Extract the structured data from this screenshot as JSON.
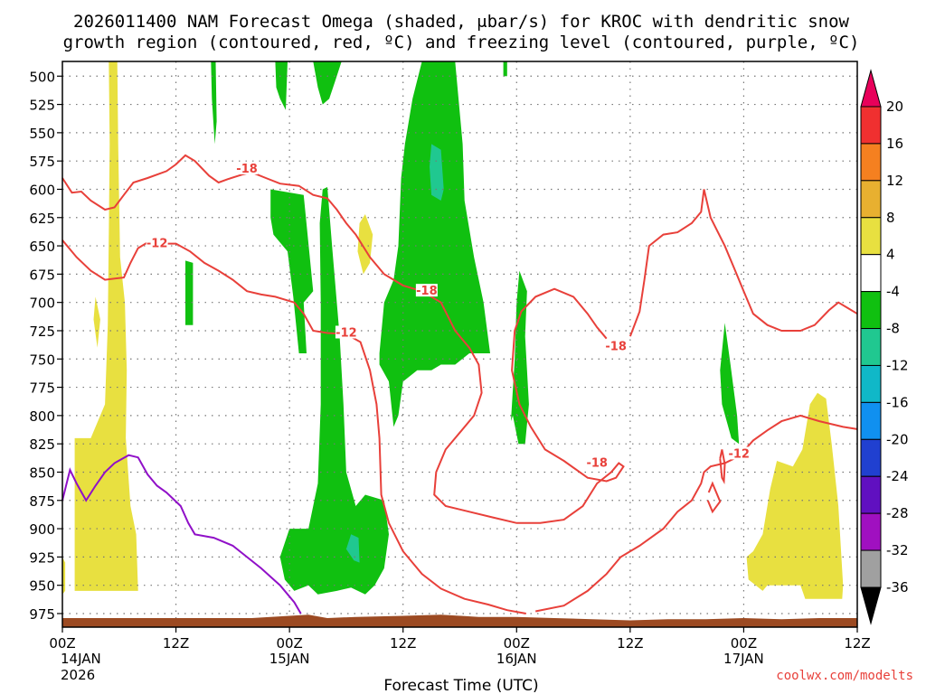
{
  "title_line1": "2026011400 NAM Forecast Omega (shaded, μbar/s) for KROC with dendritic snow",
  "title_line2": "growth region (contoured, red, ºC) and freezing level (contoured, purple, ºC)",
  "xlabel": "Forecast Time (UTC)",
  "credit": "coolwx.com/modelts",
  "chart_data": {
    "type": "heatmap",
    "title": "2026011400 NAM Forecast Omega (shaded, μbar/s) for KROC with dendritic snow growth region (contoured, red, ºC) and freezing level (contoured, purple, ºC)",
    "xlabel": "Forecast Time (UTC)",
    "ylabel": "",
    "x_unit": "forecast hour",
    "xlim": [
      0,
      84
    ],
    "ylim_hPa": [
      487,
      987
    ],
    "x_ticks": [
      {
        "hour": 0,
        "label": "00Z",
        "sub1": "14JAN",
        "sub2": "2026"
      },
      {
        "hour": 12,
        "label": "12Z",
        "sub1": "",
        "sub2": ""
      },
      {
        "hour": 24,
        "label": "00Z",
        "sub1": "15JAN",
        "sub2": ""
      },
      {
        "hour": 36,
        "label": "12Z",
        "sub1": "",
        "sub2": ""
      },
      {
        "hour": 48,
        "label": "00Z",
        "sub1": "16JAN",
        "sub2": ""
      },
      {
        "hour": 60,
        "label": "12Z",
        "sub1": "",
        "sub2": ""
      },
      {
        "hour": 72,
        "label": "00Z",
        "sub1": "17JAN",
        "sub2": ""
      },
      {
        "hour": 84,
        "label": "12Z",
        "sub1": "",
        "sub2": ""
      }
    ],
    "y_ticks": [
      500,
      525,
      550,
      575,
      600,
      625,
      650,
      675,
      700,
      725,
      750,
      775,
      800,
      825,
      850,
      875,
      900,
      925,
      950,
      975
    ],
    "grid": true,
    "colorbar": {
      "labels": [
        "20",
        "16",
        "12",
        "8",
        "4",
        "-4",
        "-8",
        "-12",
        "-16",
        "-20",
        "-24",
        "-28",
        "-32",
        "-36"
      ],
      "colors": [
        "#e8005a",
        "#f03030",
        "#f58020",
        "#e8b030",
        "#e8e040",
        "#ffffff",
        "#10c010",
        "#20c890",
        "#10b8c8",
        "#1090f0",
        "#2040d0",
        "#6010c0",
        "#a010c0",
        "#a0a0a0",
        "#000000"
      ]
    },
    "contour_labels": [
      {
        "text": "-18",
        "hour": 19.5,
        "p": 582
      },
      {
        "text": "-12",
        "hour": 10.0,
        "p": 648
      },
      {
        "text": "-18",
        "hour": 38.5,
        "p": 690
      },
      {
        "text": "-12",
        "hour": 30.0,
        "p": 727
      },
      {
        "text": "-18",
        "hour": 58.5,
        "p": 739
      },
      {
        "text": "-18",
        "hour": 56.5,
        "p": 842
      },
      {
        "text": "-12",
        "hour": 71.5,
        "p": 834
      }
    ],
    "colors": {
      "terrain": "#9c4a22",
      "contour_red": "#e8403a",
      "contour_purple": "#9010c8",
      "omega_neg4": "#10c010",
      "omega_neg8": "#20c890",
      "omega_pos4": "#e8e040"
    }
  }
}
